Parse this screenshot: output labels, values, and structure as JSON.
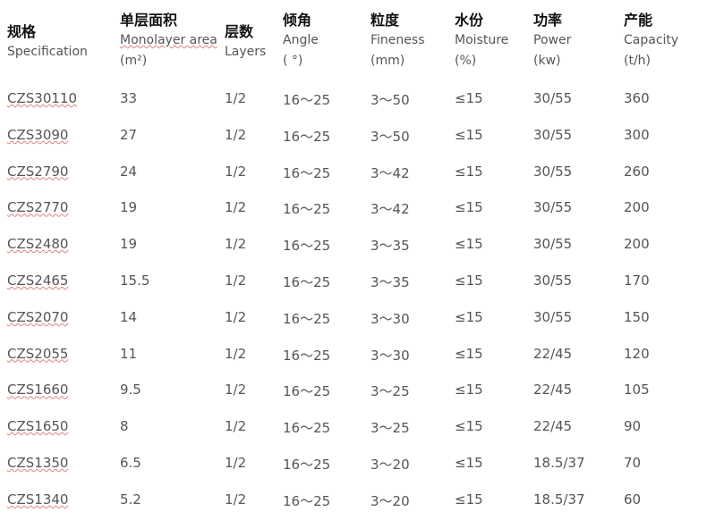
{
  "headers": [
    {
      "zh": "规格",
      "en": "Specification",
      "unit": ""
    },
    {
      "zh": "单层面积",
      "en": "Monolayer area",
      "unit": "(m²)"
    },
    {
      "zh": "层数",
      "en": "Layers",
      "unit": ""
    },
    {
      "zh": "倾角",
      "en": "Angle",
      "unit": "( °)"
    },
    {
      "zh": "粒度",
      "en": "Fineness",
      "unit": "(mm)"
    },
    {
      "zh": "水份",
      "en": "Moisture",
      "unit": "(%)"
    },
    {
      "zh": "功率",
      "en": "Power",
      "unit": "(kw)"
    },
    {
      "zh": "产能",
      "en": "Capacity",
      "unit": "(t/h)"
    }
  ],
  "rows": [
    [
      "CZS30110",
      "33",
      "1/2",
      "16～25",
      "3～50",
      "≤15",
      "30/55",
      "360"
    ],
    [
      "CZS3090",
      "27",
      "1/2",
      "16～25",
      "3～50",
      "≤15",
      "30/55",
      "300"
    ],
    [
      "CZS2790",
      "24",
      "1/2",
      "16～25",
      "3～42",
      "≤15",
      "30/55",
      "260"
    ],
    [
      "CZS2770",
      "19",
      "1/2",
      "16～25",
      "3～42",
      "≤15",
      "30/55",
      "200"
    ],
    [
      "CZS2480",
      "19",
      "1/2",
      "16～25",
      "3～35",
      "≤15",
      "30/55",
      "200"
    ],
    [
      "CZS2465",
      "15.5",
      "1/2",
      "16～25",
      "3～35",
      "≤15",
      "30/55",
      "170"
    ],
    [
      "CZS2070",
      "14",
      "1/2",
      "16～25",
      "3～30",
      "≤15",
      "30/55",
      "150"
    ],
    [
      "CZS2055",
      "11",
      "1/2",
      "16～25",
      "3～30",
      "≤15",
      "22/45",
      "120"
    ],
    [
      "CZS1660",
      "9.5",
      "1/2",
      "16～25",
      "3～25",
      "≤15",
      "22/45",
      "105"
    ],
    [
      "CZS1650",
      "8",
      "1/2",
      "16～25",
      "3～25",
      "≤15",
      "22/45",
      "90"
    ],
    [
      "CZS1350",
      "6.5",
      "1/2",
      "16～25",
      "3～20",
      "≤15",
      "18.5/37",
      "70"
    ],
    [
      "CZS1340",
      "5.2",
      "1/2",
      "16～25",
      "3～20",
      "≤15",
      "18.5/37",
      "60"
    ]
  ]
}
